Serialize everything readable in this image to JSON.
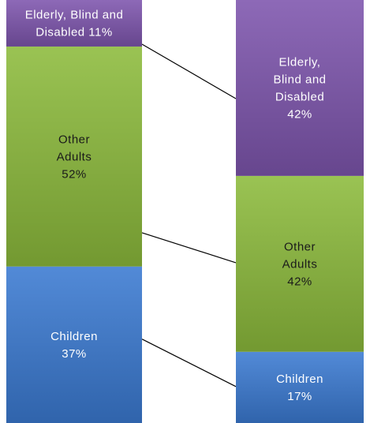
{
  "chart_data": {
    "type": "bar",
    "stacked": true,
    "normalized": true,
    "title": "",
    "xlabel": "",
    "ylabel": "",
    "ylim": [
      0,
      100
    ],
    "grid": false,
    "legend": "none",
    "categories": [
      "",
      ""
    ],
    "series": [
      {
        "key": "children",
        "values": [
          37,
          17
        ],
        "color": "#3a7ad2",
        "text_color": "#ffffff",
        "labels": [
          [
            "Children",
            "37%"
          ],
          [
            "Children",
            "17%"
          ]
        ]
      },
      {
        "key": "other-adults",
        "values": [
          52,
          42
        ],
        "color": "#8cbb3c",
        "text_color": "#1a1a1a",
        "labels": [
          [
            "Other",
            "Adults",
            "52%"
          ],
          [
            "Other",
            "Adults",
            "42%"
          ]
        ]
      },
      {
        "key": "elderly-blind-disabled",
        "values": [
          11,
          42
        ],
        "color": "#7e55ad",
        "text_color": "#ffffff",
        "labels": [
          [
            "Elderly, Blind and",
            "Disabled 11%"
          ],
          [
            "Elderly,",
            "Blind and",
            "Disabled",
            "42%"
          ]
        ]
      }
    ],
    "connectors": true
  }
}
